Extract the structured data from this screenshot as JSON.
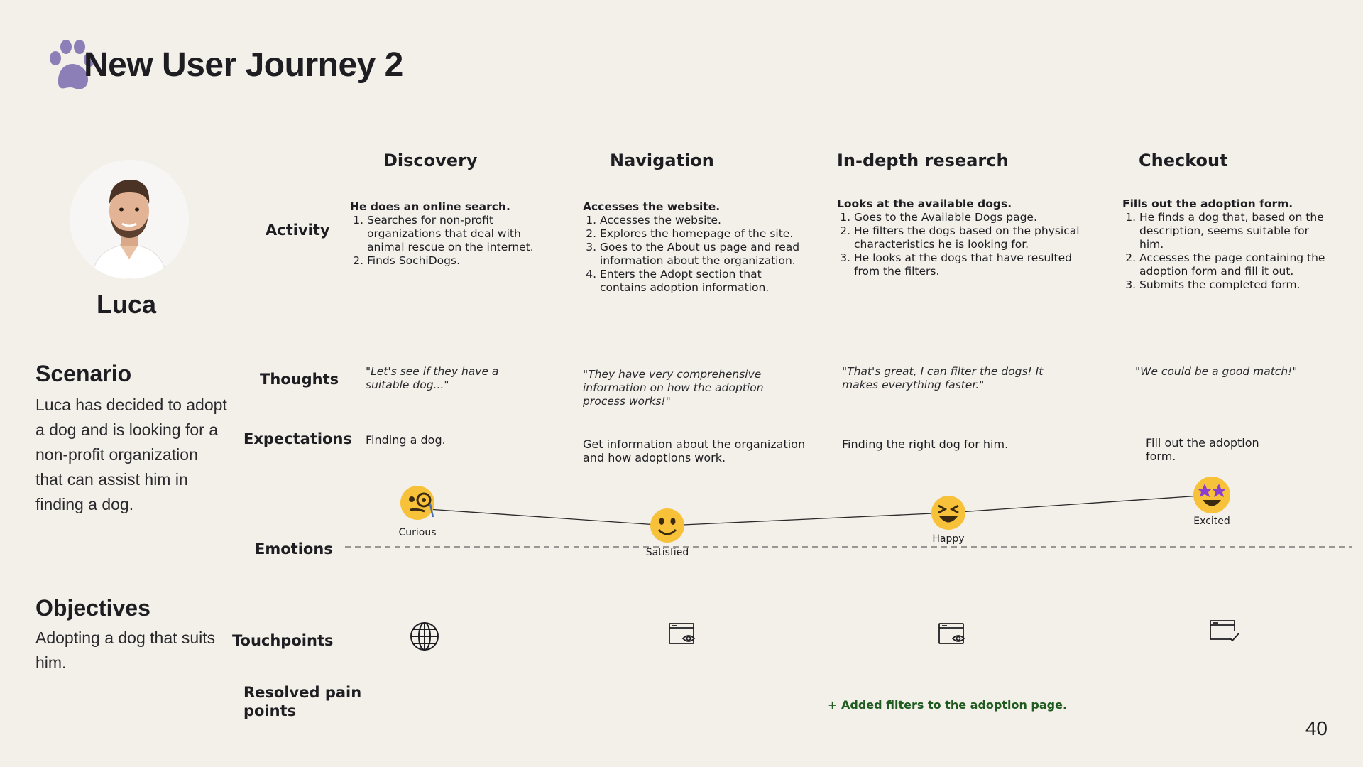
{
  "title": "New User Journey 2",
  "persona": {
    "name": "Luca"
  },
  "scenario": {
    "heading": "Scenario",
    "text": "Luca has decided to adopt a dog and is looking for a non-profit organization that can assist him in finding a dog."
  },
  "objectives": {
    "heading": "Objectives",
    "text": "Adopting a dog that suits him."
  },
  "row_labels": {
    "activity": "Activity",
    "thoughts": "Thoughts",
    "expectations": "Expectations",
    "emotions": "Emotions",
    "touchpoints": "Touchpoints",
    "pain_points": "Resolved pain points"
  },
  "stages": [
    {
      "name": "Discovery",
      "activity_lead": "He does an online search.",
      "activity_items": [
        "Searches for non-profit organizations that deal with animal rescue on the internet.",
        "Finds SochiDogs."
      ],
      "thought": "\"Let's see if they have a suitable dog...\"",
      "expectation": "Finding a dog.",
      "emotion": "Curious",
      "emotion_level": 0.55,
      "touchpoint_icon": "globe-icon"
    },
    {
      "name": "Navigation",
      "activity_lead": "Accesses the website.",
      "activity_items": [
        "Accesses the website.",
        "Explores the homepage of the site.",
        "Goes to the About us page and read information about the organization.",
        "Enters the Adopt section that contains adoption information."
      ],
      "thought": "\"They have very comprehensive information on how the adoption process works!\"",
      "expectation": "Get information about the organization and how adoptions work.",
      "emotion": "Satisfied",
      "emotion_level": 0.3,
      "touchpoint_icon": "browser-eye-icon"
    },
    {
      "name": "In-depth research",
      "activity_lead": "Looks at the available dogs.",
      "activity_items": [
        "Goes to the Available Dogs page.",
        "He filters the dogs based on the physical characteristics he is looking for.",
        "He looks at the dogs that have resulted from the filters."
      ],
      "thought": "\"That's great, I can filter the dogs! It makes everything faster.\"",
      "expectation": "Finding the right dog for him.",
      "emotion": "Happy",
      "emotion_level": 0.45,
      "touchpoint_icon": "browser-eye-icon"
    },
    {
      "name": "Checkout",
      "activity_lead": "Fills out the adoption form.",
      "activity_items": [
        "He finds a dog that, based on the description, seems suitable for him.",
        "Accesses the page containing the adoption form and fill it out.",
        "Submits the completed form."
      ],
      "thought": "\"We could be a good match!\"",
      "expectation": "Fill out the adoption form.",
      "emotion": "Excited",
      "emotion_level": 0.7,
      "touchpoint_icon": "browser-check-icon"
    }
  ],
  "pain_point": "+  Added filters to the adoption page.",
  "page_number": "40",
  "colors": {
    "background": "#f3efe9",
    "paw": "#8c7fb8",
    "pain_point_green": "#1f5a1f"
  }
}
